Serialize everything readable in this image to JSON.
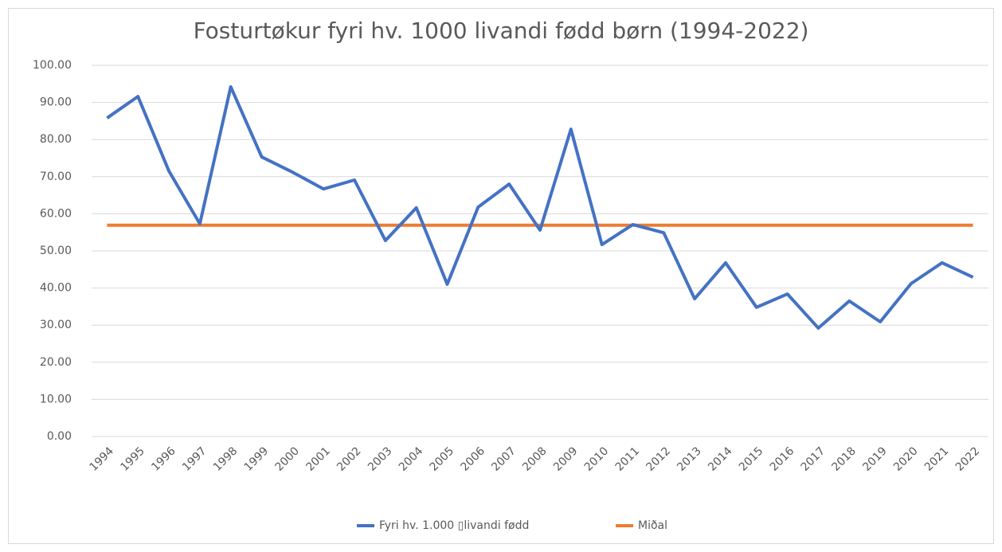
{
  "chart_data": {
    "type": "line",
    "title": "Fosturtøkur fyri hv. 1000 livandi fødd børn (1994-2022)",
    "categories": [
      "1994",
      "1995",
      "1996",
      "1997",
      "1998",
      "1999",
      "2000",
      "2001",
      "2002",
      "2003",
      "2004",
      "2005",
      "2006",
      "2007",
      "2008",
      "2009",
      "2010",
      "2011",
      "2012",
      "2013",
      "2014",
      "2015",
      "2016",
      "2017",
      "2018",
      "2019",
      "2020",
      "2021",
      "2022"
    ],
    "series": [
      {
        "name": "Fyri hv. 1.000 ▯livandi fødd",
        "color": "#4472c4",
        "values": [
          85.8,
          91.6,
          71.5,
          57.3,
          94.2,
          75.3,
          71.2,
          66.7,
          69.1,
          52.8,
          61.6,
          41.0,
          61.8,
          68.0,
          55.6,
          82.8,
          51.7,
          57.1,
          54.9,
          37.1,
          46.8,
          34.8,
          38.4,
          29.2,
          36.5,
          30.9,
          41.2,
          46.8,
          42.9
        ]
      },
      {
        "name": "Miðal",
        "color": "#ed7d31",
        "values": [
          56.9,
          56.9,
          56.9,
          56.9,
          56.9,
          56.9,
          56.9,
          56.9,
          56.9,
          56.9,
          56.9,
          56.9,
          56.9,
          56.9,
          56.9,
          56.9,
          56.9,
          56.9,
          56.9,
          56.9,
          56.9,
          56.9,
          56.9,
          56.9,
          56.9,
          56.9,
          56.9,
          56.9,
          56.9
        ]
      }
    ],
    "ylim": [
      0,
      100
    ],
    "yticks": [
      {
        "value": 0,
        "label": "0.00"
      },
      {
        "value": 10,
        "label": "10.00"
      },
      {
        "value": 20,
        "label": "20.00"
      },
      {
        "value": 30,
        "label": "30.00"
      },
      {
        "value": 40,
        "label": "40.00"
      },
      {
        "value": 50,
        "label": "50.00"
      },
      {
        "value": 60,
        "label": "60.00"
      },
      {
        "value": 70,
        "label": "70.00"
      },
      {
        "value": 80,
        "label": "80.00"
      },
      {
        "value": 90,
        "label": "90.00"
      },
      {
        "value": 100,
        "label": "100.00"
      }
    ],
    "grid": true,
    "legend": "bottom"
  }
}
